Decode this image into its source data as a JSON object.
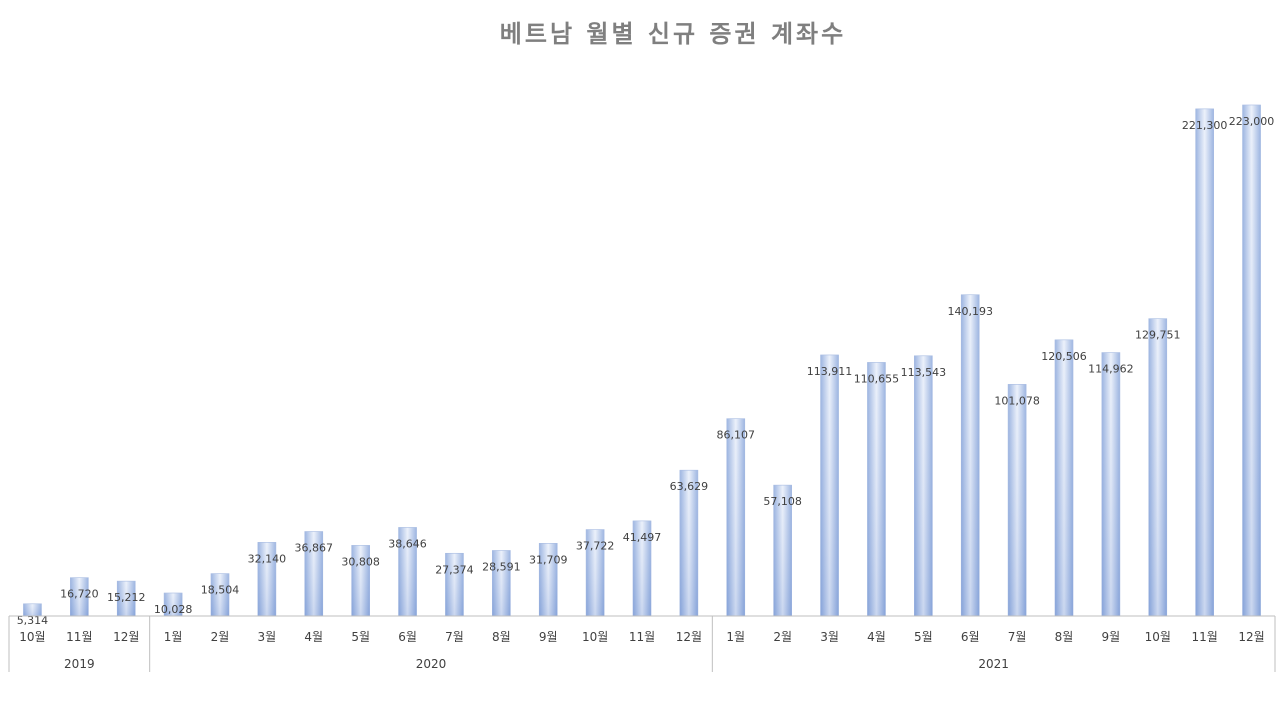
{
  "chart_data": {
    "type": "bar",
    "title": "베트남 월별 신규 증권 계좌수",
    "xlabel": "",
    "ylabel": "",
    "ylim": [
      0,
      230000
    ],
    "grid": false,
    "legend": "none",
    "bar_color": "#8faadc",
    "groups": [
      {
        "label": "2019",
        "count": 3
      },
      {
        "label": "2020",
        "count": 12
      },
      {
        "label": "2021",
        "count": 12
      }
    ],
    "categories": [
      "10월",
      "11월",
      "12월",
      "1월",
      "2월",
      "3월",
      "4월",
      "5월",
      "6월",
      "7월",
      "8월",
      "9월",
      "10월",
      "11월",
      "12월",
      "1월",
      "2월",
      "3월",
      "4월",
      "5월",
      "6월",
      "7월",
      "8월",
      "9월",
      "10월",
      "11월",
      "12월"
    ],
    "values": [
      5314,
      16720,
      15212,
      10028,
      18504,
      32140,
      36867,
      30808,
      38646,
      27374,
      28591,
      31709,
      37722,
      41497,
      63629,
      86107,
      57108,
      113911,
      110655,
      113543,
      140193,
      101078,
      120506,
      114962,
      129751,
      221300,
      223000
    ],
    "labels": [
      "5,314",
      "16,720",
      "15,212",
      "10,028",
      "18,504",
      "32,140",
      "36,867",
      "30,808",
      "38,646",
      "27,374",
      "28,591",
      "31,709",
      "37,722",
      "41,497",
      "63,629",
      "86,107",
      "57,108",
      "113,911",
      "110,655",
      "113,543",
      "140,193",
      "101,078",
      "120,506",
      "114,962",
      "129,751",
      "221,300",
      "223,000"
    ]
  }
}
